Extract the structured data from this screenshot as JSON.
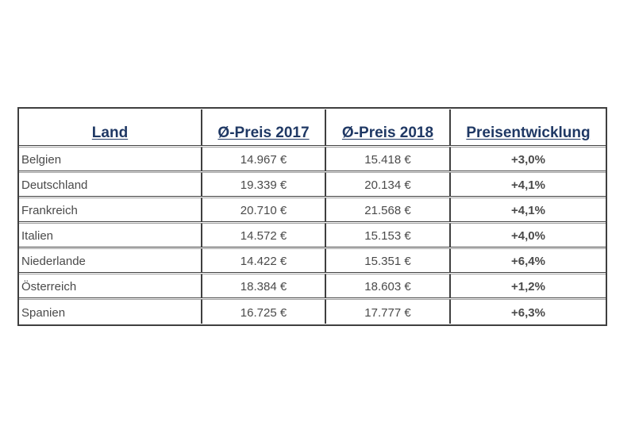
{
  "table": {
    "columns": [
      {
        "key": "land",
        "label": "Land"
      },
      {
        "key": "p2017",
        "label": "Ø-Preis 2017"
      },
      {
        "key": "p2018",
        "label": "Ø-Preis 2018"
      },
      {
        "key": "dev",
        "label": "Preisentwicklung"
      }
    ],
    "rows": [
      {
        "land": "Belgien",
        "p2017": "14.967 €",
        "p2018": "15.418 €",
        "dev": "+3,0%"
      },
      {
        "land": "Deutschland",
        "p2017": "19.339 €",
        "p2018": "20.134 €",
        "dev": "+4,1%"
      },
      {
        "land": "Frankreich",
        "p2017": "20.710 €",
        "p2018": "21.568 €",
        "dev": "+4,1%"
      },
      {
        "land": "Italien",
        "p2017": "14.572 €",
        "p2018": "15.153 €",
        "dev": "+4,0%"
      },
      {
        "land": "Niederlande",
        "p2017": "14.422 €",
        "p2018": "15.351 €",
        "dev": "+6,4%"
      },
      {
        "land": "Österreich",
        "p2017": "18.384 €",
        "p2018": "18.603 €",
        "dev": "+1,2%"
      },
      {
        "land": "Spanien",
        "p2017": "16.725 €",
        "p2018": "17.777 €",
        "dev": "+6,3%"
      }
    ],
    "colors": {
      "header_text": "#1f3864",
      "body_text": "#4a4a4a",
      "border_dark": "#3f3f3f",
      "border_light": "#a0a0a0",
      "background": "#ffffff"
    }
  },
  "chart_data": {
    "type": "table",
    "title": "",
    "columns": [
      "Land",
      "Ø-Preis 2017",
      "Ø-Preis 2018",
      "Preisentwicklung"
    ],
    "rows": [
      [
        "Belgien",
        "14.967 €",
        "15.418 €",
        "+3,0%"
      ],
      [
        "Deutschland",
        "19.339 €",
        "20.134 €",
        "+4,1%"
      ],
      [
        "Frankreich",
        "20.710 €",
        "21.568 €",
        "+4,1%"
      ],
      [
        "Italien",
        "14.572 €",
        "15.153 €",
        "+4,0%"
      ],
      [
        "Niederlande",
        "14.422 €",
        "15.351 €",
        "+6,4%"
      ],
      [
        "Österreich",
        "18.384 €",
        "18.603 €",
        "+1,2%"
      ],
      [
        "Spanien",
        "16.725 €",
        "17.777 €",
        "+6,3%"
      ]
    ],
    "series": [
      {
        "name": "Ø-Preis 2017 (EUR)",
        "values": [
          14967,
          19339,
          20710,
          14572,
          14422,
          18384,
          16725
        ]
      },
      {
        "name": "Ø-Preis 2018 (EUR)",
        "values": [
          15418,
          20134,
          21568,
          15153,
          15351,
          18603,
          17777
        ]
      },
      {
        "name": "Preisentwicklung (%)",
        "values": [
          3.0,
          4.1,
          4.1,
          4.0,
          6.4,
          1.2,
          6.3
        ]
      }
    ],
    "categories": [
      "Belgien",
      "Deutschland",
      "Frankreich",
      "Italien",
      "Niederlande",
      "Österreich",
      "Spanien"
    ]
  }
}
